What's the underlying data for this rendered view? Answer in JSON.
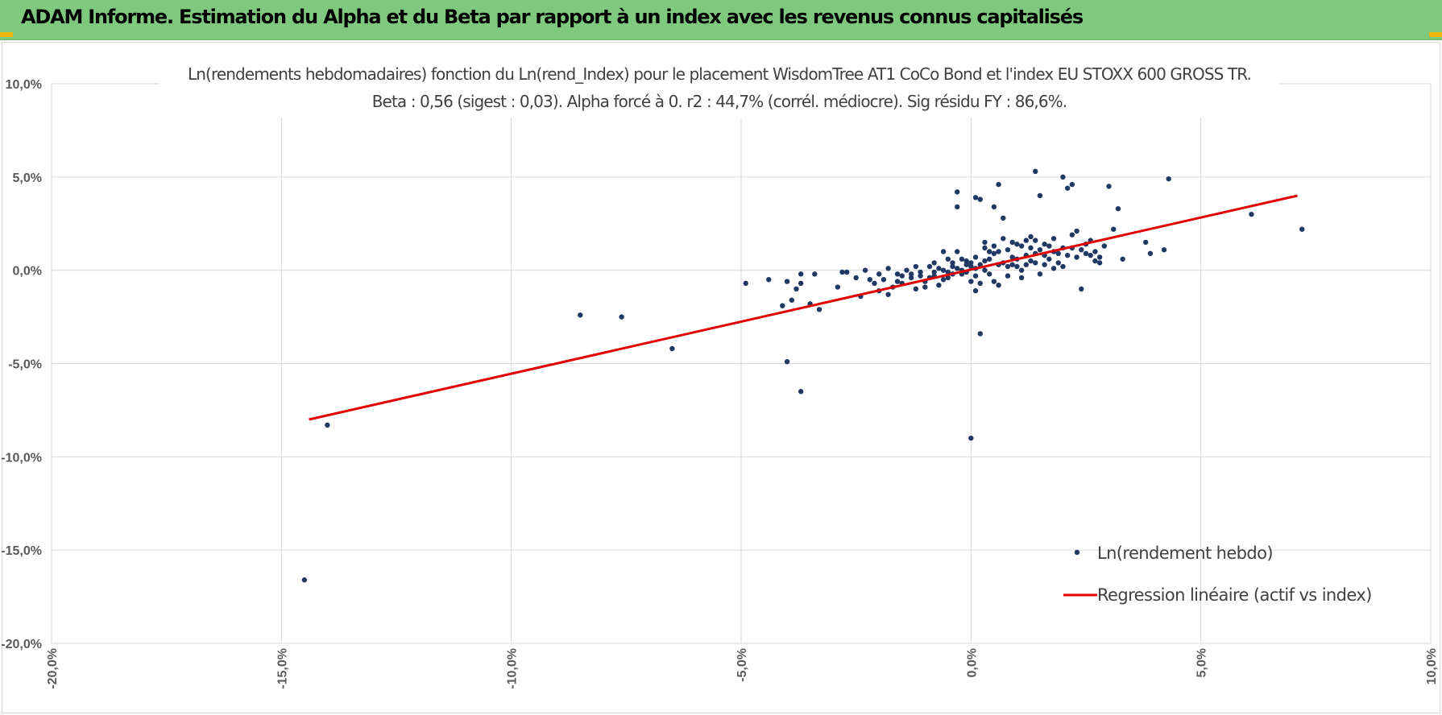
{
  "header": {
    "title": "ADAM Informe. Estimation du Alpha et du Beta par rapport à un index avec les revenus connus capitalisés"
  },
  "colors": {
    "header_bg": "#7fc97f",
    "corner_accent": "#f2b705",
    "points": "#1f3864",
    "regression": "#e00000",
    "grid": "#d9d9d9"
  },
  "chart_data": {
    "type": "scatter",
    "title": "Ln(rendements hebdomadaires) fonction du Ln(rend_Index) pour le placement WisdomTree AT1 CoCo Bond  et l'index EU STOXX 600 GROSS TR.",
    "subtitle": "Beta : 0,56 (sigest : 0,03).  Alpha forcé à 0. r2 : 44,7% (corrél. médiocre). Sig résidu FY : 86,6%.",
    "xlabel": "",
    "ylabel": "",
    "xlim": [
      -0.2,
      0.1
    ],
    "ylim": [
      -0.2,
      0.1
    ],
    "x_ticks": [
      "-20,0%",
      "-15,0%",
      "-10,0%",
      "-5,0%",
      "0,0%",
      "5,0%",
      "10,0%"
    ],
    "y_ticks": [
      "10,0%",
      "5,0%",
      "0,0%",
      "-5,0%",
      "-10,0%",
      "-15,0%",
      "-20,0%"
    ],
    "grid": true,
    "legend_position": "bottom-right",
    "series": [
      {
        "name": "Ln(rendement hebdo)",
        "kind": "scatter",
        "points": [
          [
            -0.145,
            -0.166
          ],
          [
            -0.14,
            -0.083
          ],
          [
            -0.085,
            -0.024
          ],
          [
            -0.076,
            -0.025
          ],
          [
            -0.065,
            -0.042
          ],
          [
            -0.049,
            -0.007
          ],
          [
            -0.044,
            -0.005
          ],
          [
            -0.041,
            -0.019
          ],
          [
            -0.04,
            -0.006
          ],
          [
            -0.04,
            -0.049
          ],
          [
            -0.039,
            -0.016
          ],
          [
            -0.038,
            -0.01
          ],
          [
            -0.037,
            -0.007
          ],
          [
            -0.037,
            -0.065
          ],
          [
            -0.037,
            -0.002
          ],
          [
            -0.035,
            -0.018
          ],
          [
            -0.034,
            -0.002
          ],
          [
            -0.033,
            -0.021
          ],
          [
            -0.029,
            -0.009
          ],
          [
            -0.028,
            -0.001
          ],
          [
            -0.027,
            -0.001
          ],
          [
            -0.025,
            -0.004
          ],
          [
            -0.024,
            -0.014
          ],
          [
            -0.023,
            0.0
          ],
          [
            -0.022,
            -0.005
          ],
          [
            -0.021,
            -0.007
          ],
          [
            -0.02,
            -0.011
          ],
          [
            -0.019,
            -0.005
          ],
          [
            -0.018,
            -0.013
          ],
          [
            -0.017,
            -0.009
          ],
          [
            -0.016,
            -0.002
          ],
          [
            -0.015,
            -0.007
          ],
          [
            -0.014,
            0.0
          ],
          [
            -0.013,
            -0.004
          ],
          [
            -0.012,
            -0.01
          ],
          [
            -0.011,
            -0.001
          ],
          [
            -0.01,
            -0.006
          ],
          [
            -0.009,
            0.002
          ],
          [
            -0.008,
            -0.003
          ],
          [
            -0.007,
            -0.008
          ],
          [
            -0.006,
            0.0
          ],
          [
            -0.005,
            -0.004
          ],
          [
            -0.004,
            0.004
          ],
          [
            -0.003,
            0.042
          ],
          [
            -0.003,
            0.034
          ],
          [
            -0.003,
            0.01
          ],
          [
            -0.002,
            -0.002
          ],
          [
            -0.001,
            0.005
          ],
          [
            0.0,
            -0.09
          ],
          [
            0.0,
            0.002
          ],
          [
            0.001,
            0.039
          ],
          [
            0.001,
            -0.003
          ],
          [
            0.002,
            -0.034
          ],
          [
            0.002,
            0.038
          ],
          [
            0.003,
            0.0
          ],
          [
            0.004,
            0.01
          ],
          [
            0.005,
            -0.006
          ],
          [
            0.005,
            0.034
          ],
          [
            0.006,
            0.046
          ],
          [
            0.006,
            0.003
          ],
          [
            0.007,
            0.028
          ],
          [
            0.008,
            0.002
          ],
          [
            0.009,
            0.003
          ],
          [
            0.01,
            0.002
          ],
          [
            0.011,
            -0.004
          ],
          [
            0.012,
            0.016
          ],
          [
            0.013,
            0.012
          ],
          [
            0.014,
            0.004
          ],
          [
            0.014,
            0.053
          ],
          [
            0.015,
            0.04
          ],
          [
            0.016,
            0.003
          ],
          [
            0.017,
            0.013
          ],
          [
            0.018,
            0.001
          ],
          [
            0.019,
            0.009
          ],
          [
            0.02,
            0.05
          ],
          [
            0.021,
            0.044
          ],
          [
            0.022,
            0.046
          ],
          [
            0.023,
            0.021
          ],
          [
            0.024,
            -0.01
          ],
          [
            0.025,
            0.014
          ],
          [
            0.026,
            0.008
          ],
          [
            0.027,
            0.01
          ],
          [
            0.028,
            0.004
          ],
          [
            0.029,
            0.013
          ],
          [
            0.03,
            0.045
          ],
          [
            0.031,
            0.022
          ],
          [
            0.032,
            0.033
          ],
          [
            0.033,
            0.006
          ],
          [
            0.038,
            0.015
          ],
          [
            0.039,
            0.009
          ],
          [
            0.042,
            0.011
          ],
          [
            0.043,
            0.049
          ],
          [
            0.061,
            0.03
          ],
          [
            0.072,
            0.022
          ],
          [
            -0.015,
            -0.003
          ],
          [
            -0.013,
            -0.002
          ],
          [
            -0.011,
            -0.003
          ],
          [
            -0.009,
            -0.004
          ],
          [
            -0.008,
            -0.001
          ],
          [
            -0.007,
            0.001
          ],
          [
            -0.006,
            -0.005
          ],
          [
            -0.005,
            -0.001
          ],
          [
            -0.004,
            0.002
          ],
          [
            -0.004,
            -0.002
          ],
          [
            -0.003,
            0.001
          ],
          [
            -0.002,
            0.006
          ],
          [
            -0.001,
            -0.001
          ],
          [
            -0.001,
            0.003
          ],
          [
            0.0,
            0.004
          ],
          [
            0.0,
            -0.006
          ],
          [
            0.001,
            0.007
          ],
          [
            0.001,
            0.001
          ],
          [
            0.002,
            0.003
          ],
          [
            0.002,
            -0.007
          ],
          [
            0.003,
            0.005
          ],
          [
            0.003,
            0.012
          ],
          [
            0.004,
            -0.002
          ],
          [
            0.004,
            0.006
          ],
          [
            0.005,
            0.009
          ],
          [
            0.006,
            0.01
          ],
          [
            0.006,
            -0.008
          ],
          [
            0.007,
            0.004
          ],
          [
            0.008,
            0.011
          ],
          [
            0.008,
            -0.003
          ],
          [
            0.009,
            0.007
          ],
          [
            0.009,
            0.015
          ],
          [
            0.01,
            0.006
          ],
          [
            0.011,
            0.013
          ],
          [
            0.011,
            0.0
          ],
          [
            0.012,
            0.008
          ],
          [
            0.013,
            0.005
          ],
          [
            0.013,
            0.018
          ],
          [
            0.014,
            0.009
          ],
          [
            0.015,
            0.011
          ],
          [
            0.015,
            -0.002
          ],
          [
            0.016,
            0.014
          ],
          [
            0.017,
            0.006
          ],
          [
            0.018,
            0.017
          ],
          [
            0.019,
            0.004
          ],
          [
            0.02,
            0.012
          ],
          [
            0.021,
            0.008
          ],
          [
            0.022,
            0.019
          ],
          [
            0.023,
            0.007
          ],
          [
            0.024,
            0.011
          ],
          [
            0.026,
            0.016
          ],
          [
            0.027,
            0.005
          ],
          [
            -0.02,
            -0.002
          ],
          [
            -0.018,
            0.001
          ],
          [
            -0.016,
            -0.006
          ],
          [
            -0.012,
            0.002
          ],
          [
            -0.01,
            -0.009
          ],
          [
            -0.008,
            0.004
          ],
          [
            -0.006,
            0.01
          ],
          [
            -0.005,
            0.006
          ],
          [
            -0.002,
            0.0
          ],
          [
            0.001,
            -0.011
          ],
          [
            0.003,
            0.015
          ],
          [
            0.005,
            0.013
          ],
          [
            0.007,
            0.017
          ],
          [
            0.01,
            0.014
          ],
          [
            0.012,
            0.003
          ],
          [
            0.014,
            0.016
          ],
          [
            0.016,
            0.008
          ],
          [
            0.018,
            0.01
          ],
          [
            0.02,
            0.002
          ],
          [
            0.022,
            0.012
          ],
          [
            0.025,
            0.009
          ],
          [
            0.028,
            0.007
          ]
        ]
      },
      {
        "name": "Regression linéaire (actif vs index)",
        "kind": "line",
        "points": [
          [
            -0.144,
            -0.08
          ],
          [
            0.071,
            0.04
          ]
        ]
      }
    ]
  }
}
